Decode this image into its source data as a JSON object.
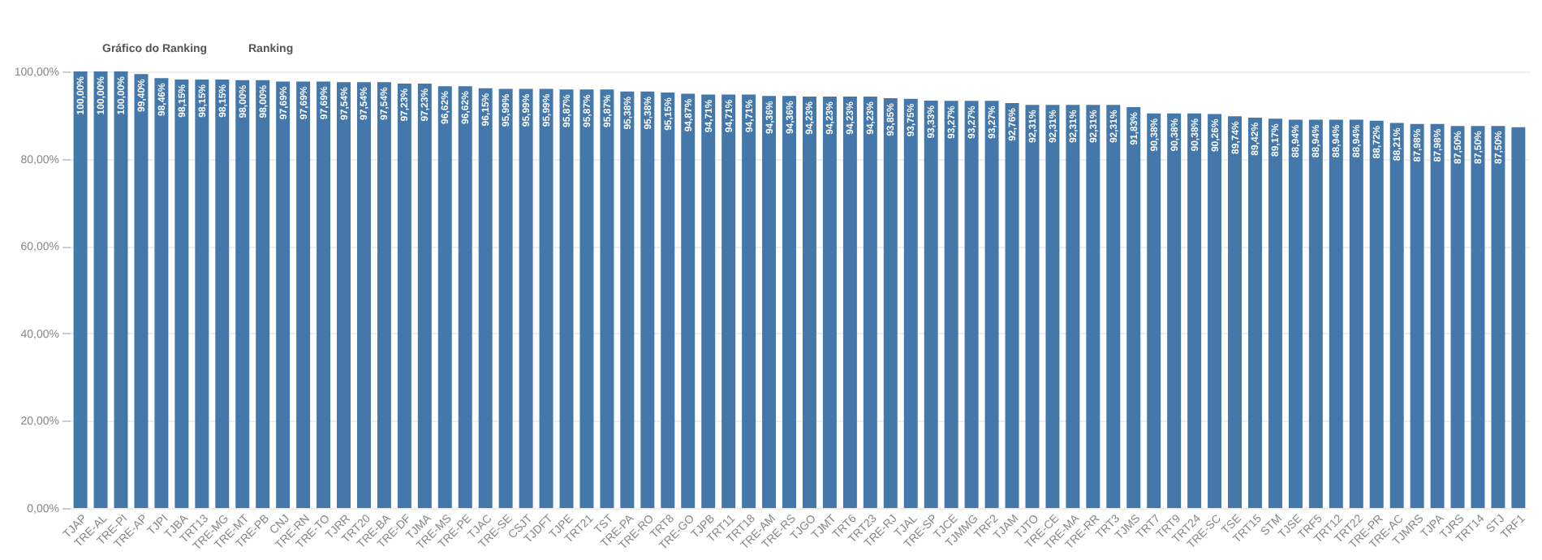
{
  "chart_data": {
    "type": "bar",
    "annotations": [
      "Gráfico do Ranking",
      "Ranking"
    ],
    "categories": [
      "TJAP",
      "TRE-AL",
      "TRE-PI",
      "TRE-AP",
      "TJPI",
      "TJBA",
      "TRT13",
      "TRE-MG",
      "TRE-MT",
      "TRE-PB",
      "CNJ",
      "TRE-RN",
      "TRE-TO",
      "TJRR",
      "TRT20",
      "TRE-BA",
      "TRE-DF",
      "TJMA",
      "TRE-MS",
      "TRE-PE",
      "TJAC",
      "TRE-SE",
      "CSJT",
      "TJDFT",
      "TJPE",
      "TRT21",
      "TST",
      "TRE-PA",
      "TRE-RO",
      "TRT8",
      "TRE-GO",
      "TJPB",
      "TRT11",
      "TRT18",
      "TRE-AM",
      "TRE-RS",
      "TJGO",
      "TJMT",
      "TRT6",
      "TRT23",
      "TRE-RJ",
      "TJAL",
      "TRE-SP",
      "TJCE",
      "TJMMG",
      "TRF2",
      "TJAM",
      "TJTO",
      "TRE-CE",
      "TRE-MA",
      "TRE-RR",
      "TRT3",
      "TJMS",
      "TRT7",
      "TRT9",
      "TRT24",
      "TRE-SC",
      "TSE",
      "TRT15",
      "STM",
      "TJSE",
      "TRF5",
      "TRT12",
      "TRT22",
      "TRE-PR",
      "TRE-AC",
      "TJMRS",
      "TJPA",
      "TJRS",
      "TRT14",
      "STJ",
      "TRF1"
    ],
    "values": [
      100,
      100,
      100,
      99.4,
      98.46,
      98.15,
      98.15,
      98.15,
      98.0,
      98.0,
      97.69,
      97.69,
      97.69,
      97.54,
      97.54,
      97.54,
      97.23,
      97.23,
      96.62,
      96.62,
      96.15,
      95.99,
      95.99,
      95.99,
      95.87,
      95.87,
      95.87,
      95.38,
      95.38,
      95.15,
      94.87,
      94.71,
      94.71,
      94.71,
      94.36,
      94.36,
      94.23,
      94.23,
      94.23,
      94.23,
      93.85,
      93.75,
      93.33,
      93.27,
      93.27,
      93.27,
      92.76,
      92.31,
      92.31,
      92.31,
      92.31,
      92.31,
      91.83,
      90.38,
      90.38,
      90.38,
      90.26,
      89.74,
      89.42,
      89.17,
      88.94,
      88.94,
      88.94,
      88.94,
      88.72,
      88.21,
      87.98,
      87.98,
      87.5,
      87.5,
      87.5,
      87.2
    ],
    "value_labels": [
      "100,00%",
      "100,00%",
      "100,00%",
      "99,40%",
      "98,46%",
      "98,15%",
      "98,15%",
      "98,15%",
      "98,00%",
      "98,00%",
      "97,69%",
      "97,69%",
      "97,69%",
      "97,54%",
      "97,54%",
      "97,54%",
      "97,23%",
      "97,23%",
      "96,62%",
      "96,62%",
      "96,15%",
      "95,99%",
      "95,99%",
      "95,99%",
      "95,87%",
      "95,87%",
      "95,87%",
      "95,38%",
      "95,38%",
      "95,15%",
      "94,87%",
      "94,71%",
      "94,71%",
      "94,71%",
      "94,36%",
      "94,36%",
      "94,23%",
      "94,23%",
      "94,23%",
      "94,23%",
      "93,85%",
      "93,75%",
      "93,33%",
      "93,27%",
      "93,27%",
      "93,27%",
      "92,76%",
      "92,31%",
      "92,31%",
      "92,31%",
      "92,31%",
      "92,31%",
      "91,83%",
      "90,38%",
      "90,38%",
      "90,38%",
      "90,26%",
      "89,74%",
      "89,42%",
      "89,17%",
      "88,94%",
      "88,94%",
      "88,94%",
      "88,94%",
      "88,72%",
      "88,21%",
      "87,98%",
      "87,98%",
      "87,50%",
      "87,50%",
      "87,50%",
      null
    ],
    "color": "#4477aa",
    "ylim": [
      0,
      100
    ],
    "yticks": [
      {
        "value": 0,
        "label": "0,00%"
      },
      {
        "value": 20,
        "label": "20,00%"
      },
      {
        "value": 40,
        "label": "40,00%"
      },
      {
        "value": 60,
        "label": "60,00%"
      },
      {
        "value": 80,
        "label": "80,00%"
      },
      {
        "value": 100,
        "label": "100,00%"
      }
    ],
    "grid": "y"
  }
}
